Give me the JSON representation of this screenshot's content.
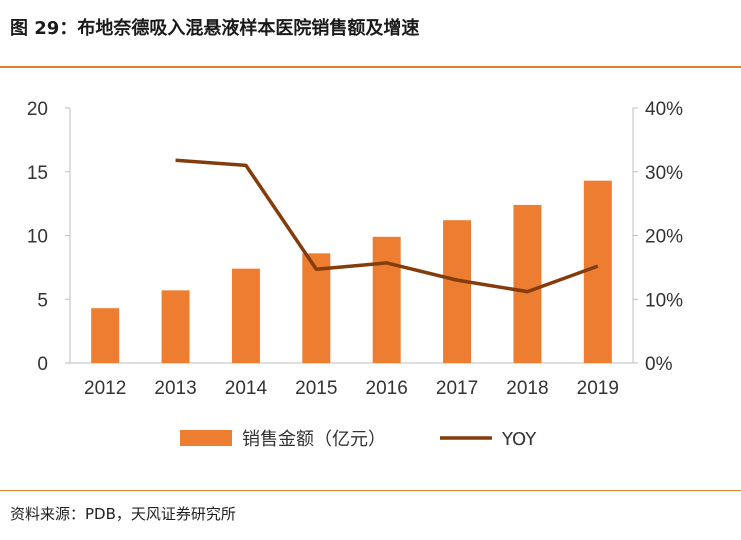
{
  "header": {
    "title": "图 29：布地奈德吸入混悬液样本医院销售额及增速"
  },
  "footer": {
    "source": "资料来源：PDB，天风证券研究所"
  },
  "chart_data": {
    "type": "bar",
    "categories": [
      "2012",
      "2013",
      "2014",
      "2015",
      "2016",
      "2017",
      "2018",
      "2019"
    ],
    "series": [
      {
        "name": "销售金额（亿元）",
        "type": "bar",
        "axis": "left",
        "values": [
          4.3,
          5.7,
          7.4,
          8.6,
          9.9,
          11.2,
          12.4,
          14.3
        ]
      },
      {
        "name": "YOY",
        "type": "line",
        "axis": "right",
        "values": [
          null,
          31.8,
          31.0,
          14.7,
          15.7,
          13.0,
          11.2,
          15.2
        ]
      }
    ],
    "y_left": {
      "ticks": [
        "0",
        "5",
        "10",
        "15",
        "20"
      ],
      "lim": [
        0,
        20
      ]
    },
    "y_right": {
      "ticks": [
        "0%",
        "10%",
        "20%",
        "30%",
        "40%"
      ],
      "lim": [
        0,
        40
      ]
    },
    "legend_position": "bottom",
    "grid": false,
    "colors": {
      "bar": "#ed7d31",
      "line": "#843c0c",
      "rule": "#e47f2b"
    }
  }
}
